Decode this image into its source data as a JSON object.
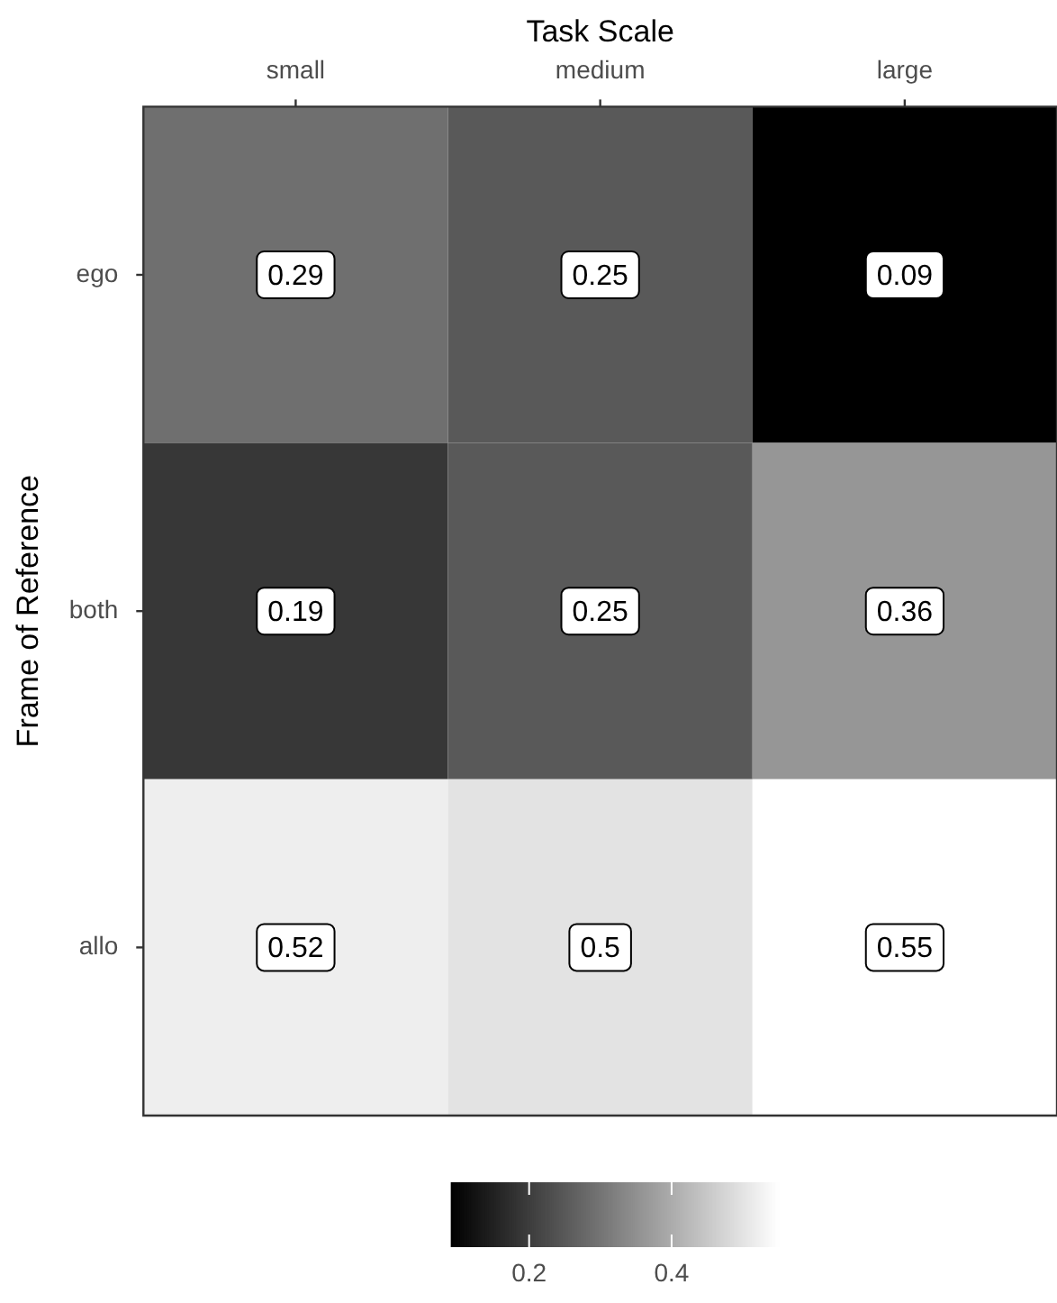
{
  "chart_data": {
    "type": "heatmap",
    "xlabel": "Task Scale",
    "ylabel": "Frame of Reference",
    "categories": [
      "small",
      "medium",
      "large"
    ],
    "y_categories": [
      "ego",
      "both",
      "allo"
    ],
    "cells": [
      [
        0.29,
        0.25,
        0.09
      ],
      [
        0.19,
        0.25,
        0.36
      ],
      [
        0.52,
        0.5,
        0.55
      ]
    ],
    "clim": [
      0.09,
      0.55
    ],
    "cticks": [
      0.2,
      0.4
    ],
    "data_labels": true
  }
}
